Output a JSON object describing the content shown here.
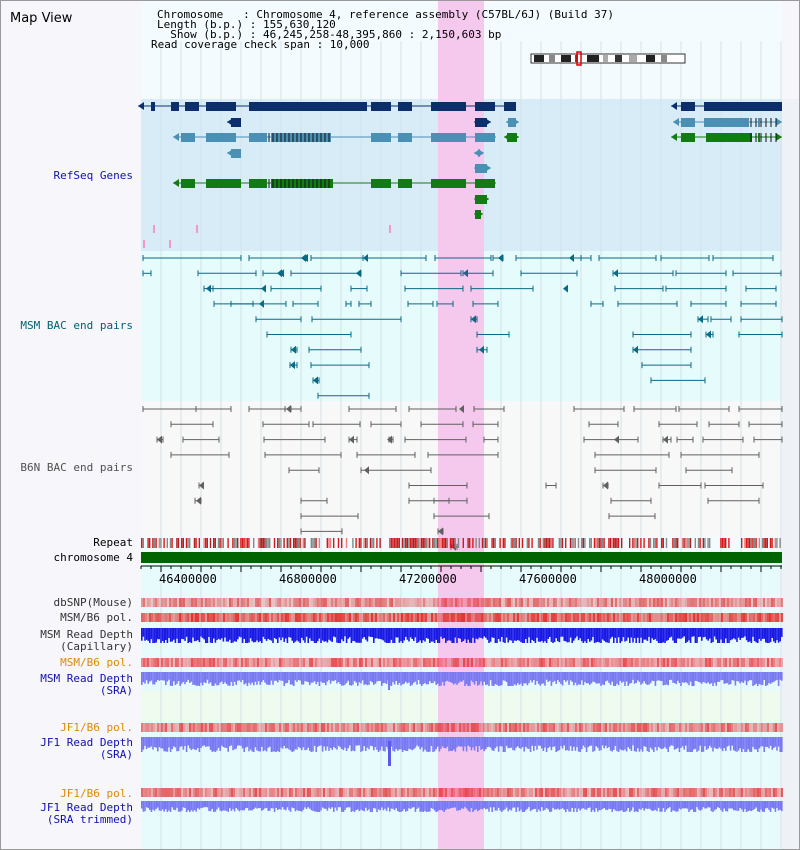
{
  "window": {
    "title": "Map View"
  },
  "header": {
    "chromosome_line": "Chromosome   : Chromosome 4, reference assembly (C57BL/6J) (Build 37)",
    "length_line": "Length (b.p.) : 155,630,120",
    "show_line": "  Show (b.p.) : 46,245,258-48,395,860 : 2,150,603 bp",
    "coverage_line": "Read coverage check span : 10,000"
  },
  "tracks": {
    "refseq": {
      "label": "RefSeq Genes",
      "color": "#1010b0"
    },
    "msm_bac": {
      "label": "MSM BAC end pairs",
      "color": "#006070"
    },
    "b6n_bac": {
      "label": "B6N BAC end pairs",
      "color": "#505050"
    },
    "repeat": {
      "label": "Repeat"
    },
    "chromosome": {
      "label": "chromosome 4",
      "color": "#006400"
    },
    "dbsnp": {
      "label": "dbSNP(Mouse)"
    },
    "msm_b6_pol_cap": {
      "label": "MSM/B6 pol."
    },
    "msm_depth_cap": {
      "line1": "MSM Read Depth",
      "line2": "(Capillary)"
    },
    "msm_b6_pol_sra": {
      "label": "MSM/B6 pol.",
      "color": "#e08a00"
    },
    "msm_depth_sra": {
      "line1": "MSM Read Depth",
      "line2": "(SRA)",
      "color": "#1010b0"
    },
    "jf1_b6_pol": {
      "label": "JF1/B6 pol.",
      "color": "#e08a00"
    },
    "jf1_depth_sra": {
      "line1": "JF1 Read Depth",
      "line2": "(SRA)",
      "color": "#1010b0"
    },
    "jf1_b6_pol_trim": {
      "label": "JF1/B6 pol.",
      "color": "#e08a00"
    },
    "jf1_depth_trim": {
      "line1": "JF1 Read Depth",
      "line2": "(SRA trimmed)",
      "color": "#1010b0"
    }
  },
  "axis": {
    "ticks": [
      "46400000",
      "46800000",
      "47200000",
      "47600000",
      "48000000"
    ]
  },
  "colors": {
    "highlight": "#f5c8ee",
    "refseq_bg": "#d8ecf8",
    "bac_bg": "#e6fbfb",
    "navy": "#0c2f6b",
    "steel": "#4a90b5",
    "gene_green": "#137b13",
    "depth_blue": "#1a1ae6",
    "depth_light": "#7a7af0"
  }
}
